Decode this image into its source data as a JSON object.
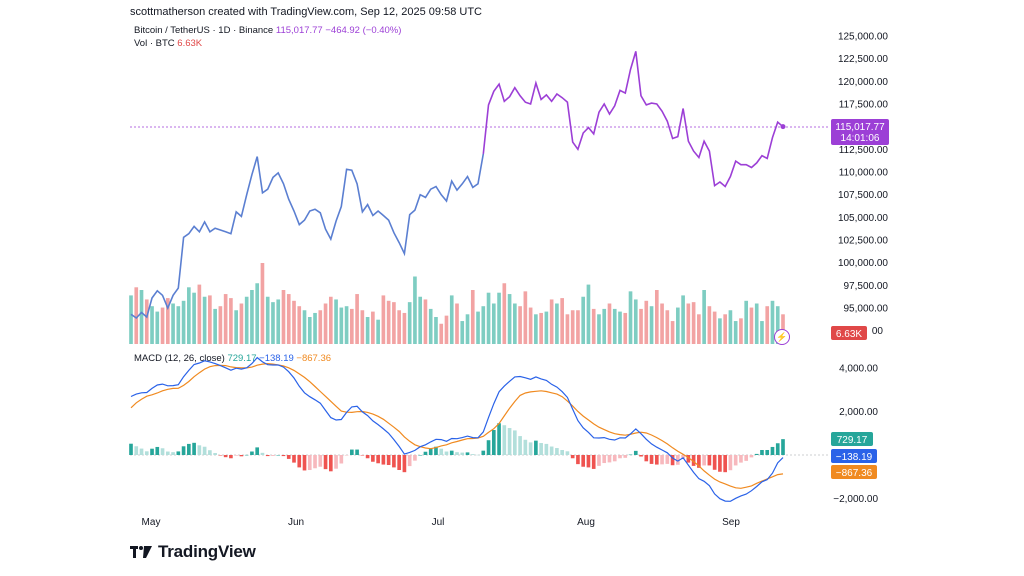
{
  "header": {
    "credit": "scottmatherson created with TradingView.com, Sep 12, 2025 09:58 UTC"
  },
  "legend": {
    "symbol": "Bitcoin / TetherUS · 1D · Binance",
    "last_price": "115,017.77",
    "change": "−464.92 (−0.40%)",
    "volume_label": "Vol · BTC",
    "volume_value": "6.63K",
    "macd_label": "MACD (12, 26, close)",
    "macd_hist": "729.17",
    "macd_line": "−138.19",
    "macd_signal": "−867.36"
  },
  "badges": {
    "price": "115,017.77",
    "countdown": "14:01:06",
    "volume": "6.63K",
    "macd_hist": "729.17",
    "macd_line": "−138.19",
    "macd_signal": "−867.36"
  },
  "colors": {
    "price_up": "#9c3fd6",
    "price_down": "#5b7fd1",
    "vol_up": "#7ecdc2",
    "vol_down": "#f2a3a3",
    "macd_line": "#2a62e8",
    "signal_line": "#f08a20",
    "hist_pos_strong": "#26a69a",
    "hist_pos_weak": "#b2dfdb",
    "hist_neg_strong": "#ef5350",
    "hist_neg_weak": "#f7b8bd"
  },
  "chart_data": [
    {
      "type": "line",
      "title": "Bitcoin / TetherUS · 1D · Binance",
      "y_ticks": [
        "125,000.00",
        "122,500.00",
        "120,000.00",
        "117,500.00",
        "115,000.00",
        "112,500.00",
        "110,000.00",
        "107,500.00",
        "105,000.00",
        "102,500.00",
        "100,000.00",
        "97,500.00",
        "95,000.00"
      ],
      "x_ticks": [
        "May",
        "Jun",
        "Jul",
        "Aug",
        "Sep"
      ],
      "ylim": [
        92500,
        126500
      ],
      "close": [
        94300,
        93900,
        94500,
        94000,
        96100,
        96900,
        96400,
        95000,
        96400,
        97200,
        102800,
        103200,
        104000,
        103400,
        104500,
        103400,
        103800,
        103600,
        103400,
        103200,
        105600,
        105100,
        107500,
        109700,
        111700,
        107700,
        108100,
        109400,
        109900,
        108700,
        107000,
        105700,
        104200,
        104700,
        105700,
        105900,
        105500,
        103700,
        102600,
        104600,
        106200,
        110300,
        110200,
        108700,
        105600,
        106400,
        105200,
        105700,
        105200,
        104700,
        103300,
        102200,
        101000,
        105300,
        105800,
        107500,
        107200,
        108100,
        108400,
        107500,
        106800,
        109000,
        108000,
        108700,
        109500,
        108300,
        108700,
        112000,
        117400,
        118900,
        119700,
        117800,
        118300,
        119300,
        118400,
        117700,
        117500,
        119800,
        118000,
        118500,
        117800,
        118600,
        118200,
        117700,
        113300,
        112500,
        114300,
        114900,
        114200,
        116600,
        117500,
        116400,
        117300,
        119000,
        118700,
        121300,
        123300,
        118400,
        117400,
        117600,
        117500,
        116700,
        115600,
        113700,
        113900,
        117000,
        113400,
        112300,
        111600,
        113400,
        112300,
        108500,
        108900,
        108400,
        109500,
        111200,
        110800,
        110800,
        110500,
        111000,
        111800,
        111500,
        113800,
        115500,
        115000
      ],
      "volume": [
        36,
        42,
        40,
        33,
        28,
        24,
        27,
        34,
        30,
        28,
        32,
        42,
        38,
        44,
        35,
        36,
        26,
        28,
        37,
        34,
        25,
        30,
        35,
        40,
        45,
        60,
        35,
        31,
        33,
        40,
        37,
        32,
        28,
        25,
        20,
        23,
        25,
        30,
        35,
        33,
        27,
        28,
        26,
        37,
        25,
        20,
        24,
        18,
        36,
        32,
        31,
        25,
        23,
        31,
        50,
        35,
        33,
        26,
        20,
        15,
        21,
        36,
        30,
        17,
        22,
        40,
        24,
        28,
        38,
        30,
        38,
        45,
        37,
        30,
        28,
        39,
        27,
        22,
        23,
        24,
        33,
        30,
        34,
        22,
        25,
        25,
        35,
        44,
        26,
        22,
        26,
        30,
        26,
        24,
        23,
        39,
        33,
        26,
        32,
        28,
        40,
        30,
        25,
        17,
        27,
        36,
        30,
        31,
        22,
        40,
        28,
        24,
        19,
        22,
        25,
        17,
        19,
        32,
        27,
        30,
        17,
        28,
        32,
        28,
        22
      ],
      "series": [
        {
          "name": "Vol · BTC"
        }
      ]
    },
    {
      "type": "line",
      "title": "MACD (12, 26, close)",
      "y_ticks": [
        "4,000.00",
        "2,000.00",
        "−2,000.00"
      ],
      "ylim": [
        -2500,
        4500
      ],
      "macd": [
        2690,
        2802,
        2860,
        2875,
        3060,
        3220,
        3260,
        3180,
        3190,
        3230,
        3600,
        3890,
        4160,
        4230,
        4330,
        4280,
        4200,
        4110,
        4010,
        3900,
        3990,
        3950,
        4010,
        4200,
        4480,
        4280,
        4150,
        4140,
        4140,
        4040,
        3830,
        3540,
        3160,
        2860,
        2680,
        2540,
        2380,
        2050,
        1720,
        1610,
        1630,
        1960,
        2210,
        2240,
        1980,
        1810,
        1570,
        1400,
        1200,
        1000,
        710,
        390,
        40,
        120,
        210,
        380,
        470,
        600,
        720,
        710,
        630,
        760,
        750,
        800,
        870,
        800,
        790,
        1060,
        1720,
        2360,
        2910,
        3170,
        3390,
        3590,
        3610,
        3550,
        3480,
        3590,
        3500,
        3430,
        3250,
        3120,
        2910,
        2650,
        2100,
        1580,
        1250,
        1040,
        790,
        780,
        800,
        720,
        690,
        790,
        780,
        970,
        1200,
        980,
        720,
        510,
        360,
        230,
        100,
        -140,
        -280,
        -130,
        -470,
        -800,
        -1090,
        -1210,
        -1410,
        -1790,
        -2010,
        -2120,
        -2130,
        -1990,
        -1880,
        -1800,
        -1640,
        -1450,
        -1230,
        -1130,
        -830,
        -360,
        -120
      ],
      "signal": [
        2170,
        2400,
        2565,
        2705,
        2770,
        2850,
        2950,
        3020,
        3060,
        3065,
        3200,
        3380,
        3600,
        3785,
        3950,
        4060,
        4110,
        4120,
        4110,
        4050,
        4020,
        4010,
        4005,
        4040,
        4130,
        4180,
        4200,
        4180,
        4140,
        4090,
        4010,
        3890,
        3730,
        3570,
        3370,
        3150,
        2920,
        2700,
        2470,
        2240,
        2020,
        1970,
        1960,
        1990,
        2000,
        1960,
        1880,
        1780,
        1640,
        1460,
        1280,
        1080,
        830,
        630,
        470,
        380,
        320,
        290,
        340,
        420,
        470,
        560,
        620,
        690,
        750,
        760,
        780,
        860,
        1040,
        1210,
        1450,
        1800,
        2150,
        2460,
        2740,
        2850,
        2900,
        2930,
        2950,
        2920,
        2860,
        2800,
        2680,
        2480,
        2250,
        2000,
        1790,
        1610,
        1430,
        1280,
        1170,
        1060,
        980,
        940,
        910,
        950,
        1010,
        1050,
        1010,
        920,
        800,
        660,
        510,
        330,
        170,
        30,
        -120,
        -300,
        -500,
        -730,
        -930,
        -1110,
        -1240,
        -1330,
        -1430,
        -1510,
        -1530,
        -1480,
        -1420,
        -1300,
        -1200,
        -1100,
        -1000,
        -900,
        -867
      ],
      "histogram": [
        519,
        402,
        295,
        170,
        290,
        370,
        310,
        160,
        130,
        165,
        400,
        510,
        560,
        445,
        380,
        220,
        90,
        -10,
        -100,
        -150,
        -30,
        -60,
        5,
        160,
        350,
        100,
        -50,
        -40,
        0,
        -50,
        -180,
        -350,
        -570,
        -710,
        -690,
        -610,
        -540,
        -650,
        -750,
        -630,
        -390,
        -10,
        250,
        250,
        -20,
        -150,
        -310,
        -380,
        -440,
        -460,
        -570,
        -690,
        -790,
        -510,
        -260,
        0,
        150,
        310,
        380,
        290,
        160,
        200,
        130,
        110,
        120,
        40,
        10,
        200,
        680,
        1150,
        1460,
        1370,
        1240,
        1130,
        870,
        700,
        580,
        660,
        550,
        510,
        390,
        320,
        230,
        170,
        -150,
        -420,
        -540,
        -570,
        -640,
        -500,
        -370,
        -340,
        -290,
        -150,
        -130,
        20,
        190,
        -70,
        -290,
        -410,
        -440,
        -430,
        -410,
        -470,
        -450,
        -160,
        -350,
        -500,
        -590,
        -480,
        -480,
        -680,
        -770,
        -790,
        -700,
        -480,
        -350,
        -270,
        -110,
        50,
        230,
        230,
        370,
        540,
        729
      ]
    }
  ]
}
